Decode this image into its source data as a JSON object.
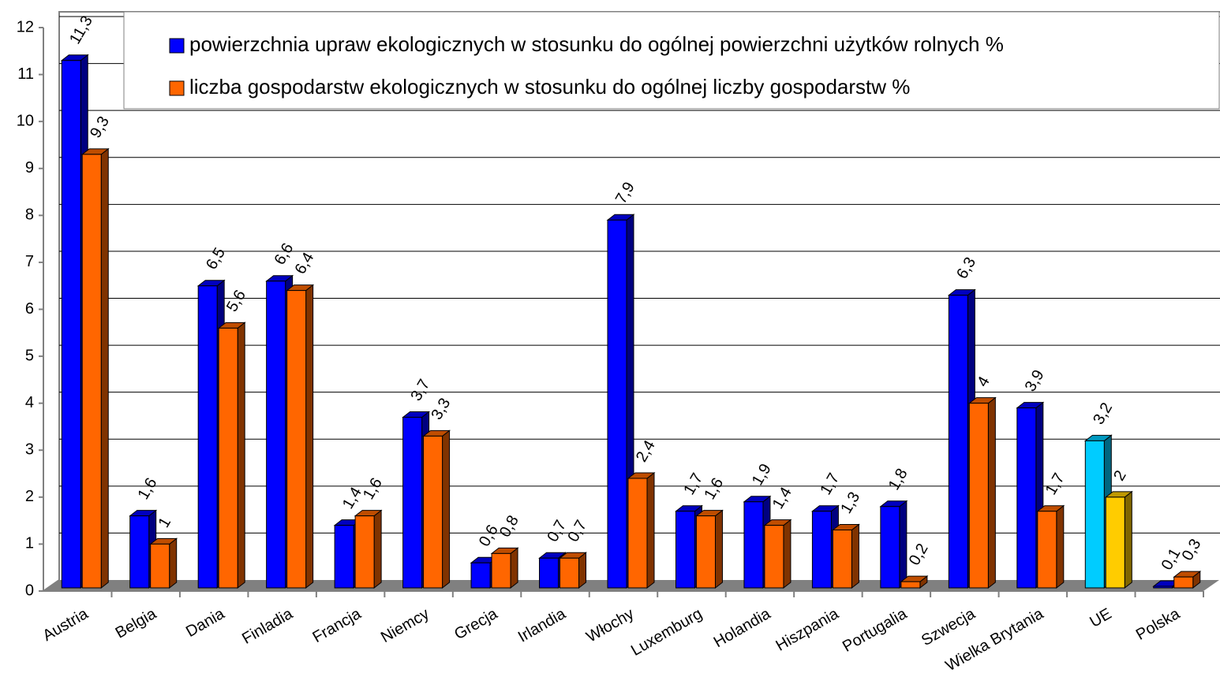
{
  "chart_data": {
    "type": "bar3d",
    "categories": [
      "Austria",
      "Belgia",
      "Dania",
      "Finladia",
      "Francja",
      "Niemcy",
      "Grecja",
      "Irlandia",
      "Włochy",
      "Luxemburg",
      "Holandia",
      "Hiszpania",
      "Portugalia",
      "Szwecja",
      "Wielka Brytania",
      "UE",
      "Polska"
    ],
    "series": [
      {
        "name": "powierzchnia upraw ekologicznych w stosunku do ogólnej powierzchni użytków rolnych %",
        "color": "#0000ff",
        "colors": [
          "#0000ff",
          "#0000ff",
          "#0000ff",
          "#0000ff",
          "#0000ff",
          "#0000ff",
          "#0000ff",
          "#0000ff",
          "#0000ff",
          "#0000ff",
          "#0000ff",
          "#0000ff",
          "#0000ff",
          "#0000ff",
          "#0000ff",
          "#00ccff",
          "#0000ff"
        ],
        "values": [
          11.3,
          1.6,
          6.5,
          6.6,
          1.4,
          3.7,
          0.6,
          0.7,
          7.9,
          1.7,
          1.9,
          1.7,
          1.8,
          6.3,
          3.9,
          3.2,
          0.1
        ],
        "value_labels": [
          "11,3",
          "1,6",
          "6,5",
          "6,6",
          "1,4",
          "3,7",
          "0,6",
          "0,7",
          "7,9",
          "1,7",
          "1,9",
          "1,7",
          "1,8",
          "6,3",
          "3,9",
          "3,2",
          "0,1"
        ]
      },
      {
        "name": "liczba gospodarstw ekologicznych w stosunku do ogólnej liczby gospodarstw %",
        "color": "#ff6600",
        "colors": [
          "#ff6600",
          "#ff6600",
          "#ff6600",
          "#ff6600",
          "#ff6600",
          "#ff6600",
          "#ff6600",
          "#ff6600",
          "#ff6600",
          "#ff6600",
          "#ff6600",
          "#ff6600",
          "#ff6600",
          "#ff6600",
          "#ff6600",
          "#ffcc00",
          "#ff6600"
        ],
        "values": [
          9.3,
          1,
          5.6,
          6.4,
          1.6,
          3.3,
          0.8,
          0.7,
          2.4,
          1.6,
          1.4,
          1.3,
          0.2,
          4,
          1.7,
          2,
          0.3
        ],
        "value_labels": [
          "9,3",
          "1",
          "5,6",
          "6,4",
          "1,6",
          "3,3",
          "0,8",
          "0,7",
          "2,4",
          "1,6",
          "1,4",
          "1,3",
          "0,2",
          "4",
          "1,7",
          "2",
          "0,3"
        ]
      }
    ],
    "ylim": [
      0,
      12
    ],
    "yticks": [
      0,
      1,
      2,
      3,
      4,
      5,
      6,
      7,
      8,
      9,
      10,
      11,
      12
    ],
    "grid": true,
    "legend": "top"
  }
}
